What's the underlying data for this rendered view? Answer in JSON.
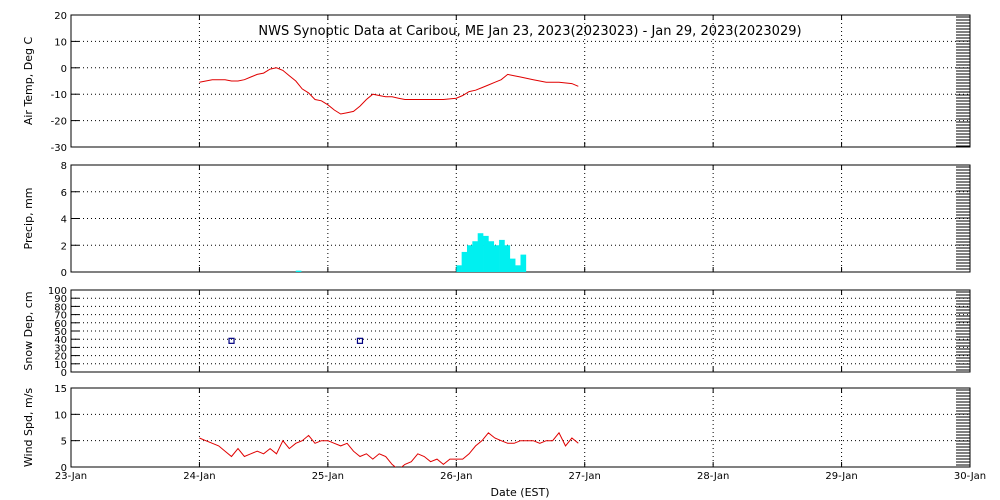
{
  "chart_data": {
    "title": "NWS Synoptic Data at Caribou, ME   Jan 23, 2023(2023023) - Jan 29, 2023(2023029)",
    "xlabel": "Date (EST)",
    "x_range_days": [
      0,
      7
    ],
    "x_ticks": [
      "23-Jan",
      "24-Jan",
      "25-Jan",
      "26-Jan",
      "27-Jan",
      "28-Jan",
      "29-Jan",
      "30-Jan"
    ],
    "grid": "dotted",
    "colors": {
      "line": "#e00000",
      "bar": "#00f0f0",
      "marker": "#000080",
      "grid": "#000000"
    },
    "panels": [
      {
        "name": "air-temp",
        "type": "line",
        "ylabel": "Air Temp, Deg C",
        "ylim": [
          -30,
          20
        ],
        "yticks": [
          "-30",
          "-20",
          "-10",
          "0",
          "10",
          "20"
        ],
        "series": [
          {
            "x": [
              1.0,
              1.05,
              1.1,
              1.2,
              1.25,
              1.3,
              1.35,
              1.4,
              1.45,
              1.5,
              1.55,
              1.6,
              1.65,
              1.7,
              1.75,
              1.8,
              1.85,
              1.9,
              1.95,
              2.0,
              2.05,
              2.1,
              2.15,
              2.2,
              2.25,
              2.3,
              2.35,
              2.4,
              2.45,
              2.5,
              2.55,
              2.6,
              2.65,
              2.7,
              2.75,
              2.8,
              2.9,
              3.0,
              3.05,
              3.1,
              3.15,
              3.2,
              3.25,
              3.3,
              3.35,
              3.4,
              3.45,
              3.5,
              3.55,
              3.6,
              3.65,
              3.7,
              3.75,
              3.8,
              3.9,
              3.95
            ],
            "y": [
              -5.5,
              -5,
              -4.5,
              -4.5,
              -5,
              -5,
              -4.5,
              -3.5,
              -2.5,
              -2,
              -0.5,
              0,
              -1,
              -3,
              -5,
              -8,
              -9.5,
              -12,
              -12.5,
              -14,
              -16,
              -17.5,
              -17,
              -16.5,
              -14.5,
              -12,
              -10,
              -10.5,
              -11,
              -11,
              -11.5,
              -12,
              -12,
              -12,
              -12,
              -12,
              -12,
              -11.5,
              -10.5,
              -9,
              -8.5,
              -7.5,
              -6.5,
              -5.5,
              -4.5,
              -2.5,
              -3,
              -3.5,
              -4,
              -4.5,
              -5,
              -5.5,
              -5.5,
              -5.5,
              -6,
              -7
            ]
          }
        ]
      },
      {
        "name": "precip",
        "type": "bar",
        "ylabel": "Precip, mm",
        "ylim": [
          0,
          8
        ],
        "yticks": [
          "0",
          "2",
          "4",
          "6",
          "8"
        ],
        "bars": {
          "x": [
            1.75,
            3.0,
            3.0417,
            3.0833,
            3.125,
            3.1667,
            3.2083,
            3.25,
            3.2917,
            3.3333,
            3.375,
            3.4167,
            3.4583,
            3.5
          ],
          "values": [
            0.1,
            0.5,
            1.5,
            2.0,
            2.3,
            2.9,
            2.7,
            2.3,
            2.0,
            2.4,
            2.0,
            1.0,
            0.5,
            1.3
          ]
        }
      },
      {
        "name": "snow-depth",
        "type": "scatter",
        "ylabel": "Snow Dep, cm",
        "ylim": [
          0,
          100
        ],
        "yticks": [
          "0",
          "10",
          "20",
          "30",
          "40",
          "50",
          "60",
          "70",
          "80",
          "90",
          "100"
        ],
        "points": {
          "x": [
            1.25,
            2.25
          ],
          "y": [
            38,
            38
          ]
        }
      },
      {
        "name": "wind-speed",
        "type": "line",
        "ylabel": "Wind Spd, m/s",
        "ylim": [
          0,
          15
        ],
        "yticks": [
          "0",
          "5",
          "10",
          "15"
        ],
        "series": [
          {
            "x": [
              1.0,
              1.05,
              1.1,
              1.15,
              1.2,
              1.25,
              1.3,
              1.35,
              1.4,
              1.45,
              1.5,
              1.55,
              1.6,
              1.65,
              1.7,
              1.75,
              1.8,
              1.85,
              1.9,
              1.95,
              2.0,
              2.05,
              2.1,
              2.15,
              2.2,
              2.25,
              2.3,
              2.35,
              2.4,
              2.45,
              2.5,
              2.55,
              2.6,
              2.65,
              2.7,
              2.75,
              2.8,
              2.85,
              2.9,
              2.95,
              3.0,
              3.05,
              3.1,
              3.15,
              3.2,
              3.25,
              3.3,
              3.35,
              3.4,
              3.45,
              3.5,
              3.55,
              3.6,
              3.65,
              3.7,
              3.75,
              3.8,
              3.85,
              3.9,
              3.95
            ],
            "y": [
              5.5,
              5,
              4.5,
              4,
              3,
              2,
              3.5,
              2,
              2.5,
              3,
              2.5,
              3.5,
              2.5,
              5,
              3.5,
              4.5,
              5,
              6,
              4.5,
              5,
              5,
              4.5,
              4,
              4.5,
              3,
              2,
              2.5,
              1.5,
              2.5,
              2,
              0.5,
              -0.5,
              0.5,
              1,
              2.5,
              2,
              1,
              1.5,
              0.5,
              1.5,
              1.5,
              1.5,
              2.5,
              4,
              5,
              6.5,
              5.5,
              5,
              4.5,
              4.5,
              5,
              5,
              5,
              4.5,
              5,
              5,
              6.5,
              4,
              5.5,
              4.5
            ]
          }
        ]
      }
    ]
  }
}
